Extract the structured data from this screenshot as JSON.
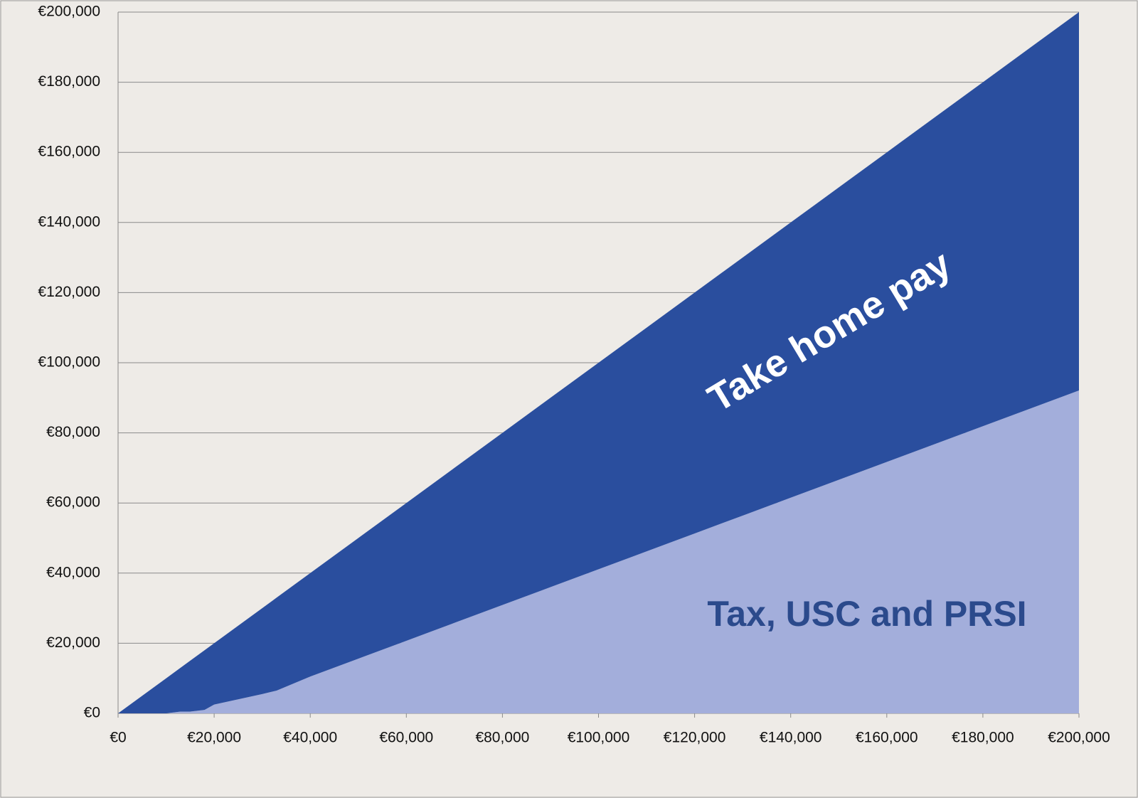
{
  "chart_data": {
    "type": "stacked_area",
    "x": [
      0,
      5000,
      10000,
      13000,
      15000,
      18000,
      20000,
      25000,
      30000,
      33000,
      40000,
      50000,
      60000,
      70000,
      80000,
      90000,
      100000,
      110000,
      120000,
      130000,
      140000,
      150000,
      160000,
      170000,
      180000,
      190000,
      200000
    ],
    "series": [
      {
        "name": "Tax, USC and PRSI",
        "color": "#a3aedb",
        "values": [
          0,
          0,
          0,
          500,
          500,
          1000,
          2500,
          4000,
          5500,
          6500,
          10500,
          15600,
          20700,
          25800,
          30900,
          36000,
          41100,
          46200,
          51300,
          56400,
          61500,
          66600,
          71700,
          76800,
          81900,
          87000,
          92100
        ]
      },
      {
        "name": "Take home pay",
        "color": "#2a4e9e",
        "values": [
          0,
          5000,
          10000,
          12500,
          14500,
          17000,
          17500,
          21000,
          24500,
          26500,
          29500,
          34400,
          39300,
          44200,
          49100,
          54000,
          58900,
          63800,
          68700,
          73600,
          78500,
          83400,
          88300,
          93200,
          98100,
          103000,
          107900
        ]
      }
    ],
    "xlim": [
      0,
      200000
    ],
    "xticks": [
      {
        "value": 0,
        "label": "€0"
      },
      {
        "value": 20000,
        "label": "€20,000"
      },
      {
        "value": 40000,
        "label": "€40,000"
      },
      {
        "value": 60000,
        "label": "€60,000"
      },
      {
        "value": 80000,
        "label": "€80,000"
      },
      {
        "value": 100000,
        "label": "€100,000"
      },
      {
        "value": 120000,
        "label": "€120,000"
      },
      {
        "value": 140000,
        "label": "€140,000"
      },
      {
        "value": 160000,
        "label": "€160,000"
      },
      {
        "value": 180000,
        "label": "€180,000"
      },
      {
        "value": 200000,
        "label": "€200,000"
      }
    ],
    "ylim": [
      0,
      200000
    ],
    "yticks": [
      {
        "value": 0,
        "label": "€0"
      },
      {
        "value": 20000,
        "label": "€20,000"
      },
      {
        "value": 40000,
        "label": "€40,000"
      },
      {
        "value": 60000,
        "label": "€60,000"
      },
      {
        "value": 80000,
        "label": "€80,000"
      },
      {
        "value": 100000,
        "label": "€100,000"
      },
      {
        "value": 120000,
        "label": "€120,000"
      },
      {
        "value": 140000,
        "label": "€140,000"
      },
      {
        "value": 160000,
        "label": "€160,000"
      },
      {
        "value": 180000,
        "label": "€180,000"
      },
      {
        "value": 200000,
        "label": "€200,000"
      }
    ],
    "grid": true
  }
}
